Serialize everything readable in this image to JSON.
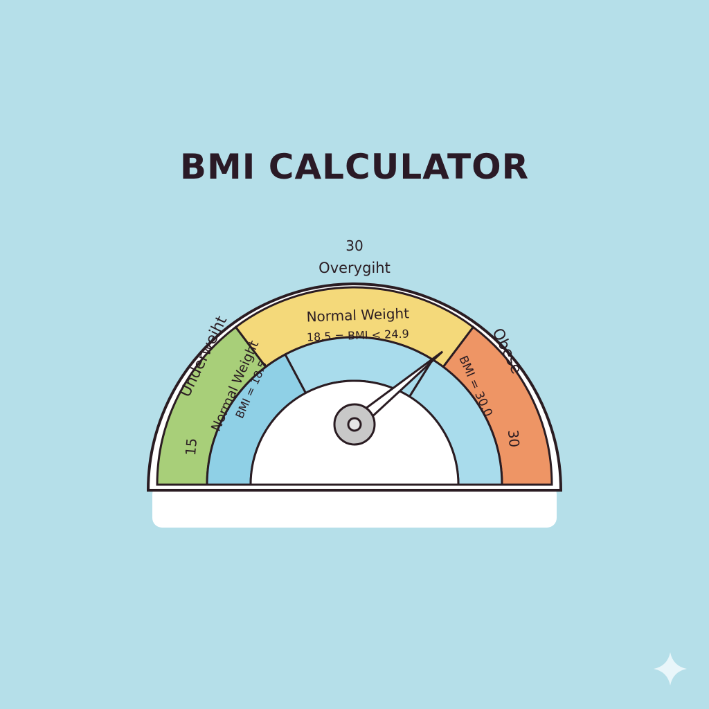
{
  "title": "BMI CALCULATOR",
  "gauge": {
    "outer_band": [
      {
        "label": "Underweiht",
        "color": "#a8cf79"
      },
      {
        "label": "Overygiht",
        "color": "#f4d97a"
      },
      {
        "label": "Obese",
        "color": "#ee9565"
      }
    ],
    "inner_band": [
      {
        "label": "Normal Weight",
        "sublabel": "BMI = 18.5",
        "color": "#8fd0e6"
      },
      {
        "label": "Normal Weight",
        "sublabel": "18.5 = BMI < 24.9",
        "color": "#a9dcec"
      },
      {
        "label": "",
        "sublabel": "BMI = 30.0",
        "color": "#a9dcec"
      }
    ],
    "scale_labels": {
      "left": "15",
      "top": "30",
      "right": "30"
    },
    "needle_value_fraction": 0.78,
    "colors": {
      "background": "#b5dfe9",
      "face": "#ffffff",
      "outline": "#2a1c22",
      "needle_hub": "#c8c8c8"
    }
  }
}
